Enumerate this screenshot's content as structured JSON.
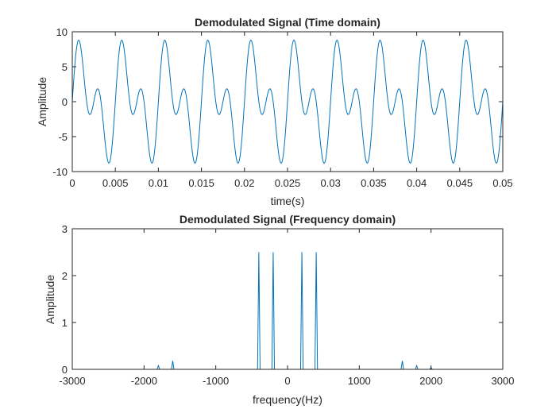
{
  "chart_data": [
    {
      "type": "line",
      "title": "Demodulated Signal (Time domain)",
      "xlabel": "time(s)",
      "ylabel": "Amplitude",
      "xlim": [
        0,
        0.05
      ],
      "ylim": [
        -10,
        10
      ],
      "xticks": [
        0,
        0.005,
        0.01,
        0.015,
        0.02,
        0.025,
        0.03,
        0.035,
        0.04,
        0.045,
        0.05
      ],
      "xtick_labels": [
        "0",
        "0.005",
        "0.01",
        "0.015",
        "0.02",
        "0.025",
        "0.03",
        "0.035",
        "0.04",
        "0.045",
        "0.05"
      ],
      "yticks": [
        -10,
        -5,
        0,
        5,
        10
      ],
      "ytick_labels": [
        "-10",
        "-5",
        "0",
        "5",
        "10"
      ],
      "grid": false,
      "color": "#0072bd",
      "signal": {
        "components": [
          {
            "frequency_hz": 200,
            "amplitude": 5
          },
          {
            "frequency_hz": 400,
            "amplitude": 5
          }
        ],
        "x_start": 0,
        "x_end": 0.05
      }
    },
    {
      "type": "line",
      "title": "Demodulated Signal (Frequency domain)",
      "xlabel": "frequency(Hz)",
      "ylabel": "Amplitude",
      "xlim": [
        -3000,
        3000
      ],
      "ylim": [
        0,
        3
      ],
      "xticks": [
        -3000,
        -2000,
        -1000,
        0,
        1000,
        2000,
        3000
      ],
      "xtick_labels": [
        "-3000",
        "-2000",
        "-1000",
        "0",
        "1000",
        "2000",
        "3000"
      ],
      "yticks": [
        0,
        1,
        2,
        3
      ],
      "ytick_labels": [
        "0",
        "1",
        "2",
        "3"
      ],
      "grid": false,
      "color": "#0072bd",
      "peaks": [
        {
          "x": -1800,
          "y": 0.08
        },
        {
          "x": -1600,
          "y": 0.18
        },
        {
          "x": -400,
          "y": 2.5
        },
        {
          "x": -200,
          "y": 2.5
        },
        {
          "x": 200,
          "y": 2.5
        },
        {
          "x": 400,
          "y": 2.5
        },
        {
          "x": 1600,
          "y": 0.18
        },
        {
          "x": 1800,
          "y": 0.08
        },
        {
          "x": 2000,
          "y": 0.04
        }
      ]
    }
  ]
}
